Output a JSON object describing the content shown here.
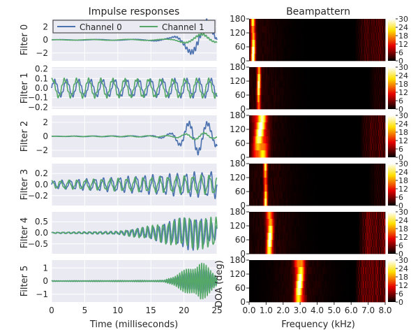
{
  "chart_data": [
    {
      "type": "line",
      "title": "Impulse responses",
      "xlabel": "Time (milliseconds)",
      "xlim": [
        0,
        25
      ],
      "xticks": [
        "0",
        "5",
        "10",
        "15",
        "20",
        "25"
      ],
      "legend": {
        "placement": "top",
        "entries": [
          "Channel 0",
          "Channel 1"
        ]
      },
      "series_colors": [
        "#4c72b0",
        "#55a868"
      ],
      "panels": [
        {
          "ylabel": "Filter 0",
          "ylim": [
            -3.2,
            3.2
          ],
          "yticks": [
            "2",
            "0",
            "−2"
          ],
          "series": [
            {
              "name": "Channel 0",
              "envelope": [
                [
                  0,
                  0.03
                ],
                [
                  14,
                  0.08
                ],
                [
                  18,
                  0.3
                ],
                [
                  20,
                  1.2
                ],
                [
                  22,
                  2.6
                ],
                [
                  23.5,
                  2.8
                ],
                [
                  25,
                  1.0
                ]
              ],
              "freq_khz": 0.18
            },
            {
              "name": "Channel 1",
              "envelope": [
                [
                  0,
                  0.03
                ],
                [
                  18,
                  0.1
                ],
                [
                  21,
                  0.6
                ],
                [
                  23,
                  0.9
                ],
                [
                  25,
                  0.4
                ]
              ],
              "freq_khz": 0.18
            }
          ]
        },
        {
          "ylabel": "Filter 1",
          "ylim": [
            -0.22,
            0.22
          ],
          "yticks": [
            "0.2",
            "0.1",
            "0.0",
            "−0.1",
            "−0.2"
          ],
          "series": [
            {
              "name": "Channel 0",
              "envelope": [
                [
                  0,
                  0.08
                ],
                [
                  25,
                  0.09
                ]
              ],
              "freq_khz": 0.55
            },
            {
              "name": "Channel 1",
              "envelope": [
                [
                  0,
                  0.09
                ],
                [
                  25,
                  0.09
                ]
              ],
              "freq_khz": 0.55
            }
          ]
        },
        {
          "ylabel": "Filter 2",
          "ylim": [
            -3.0,
            3.0
          ],
          "yticks": [
            "2",
            "0",
            "−2"
          ],
          "series": [
            {
              "name": "Channel 0",
              "envelope": [
                [
                  0,
                  0.02
                ],
                [
                  15,
                  0.08
                ],
                [
                  18,
                  0.4
                ],
                [
                  20,
                  1.6
                ],
                [
                  22,
                  2.3
                ],
                [
                  25,
                  1.4
                ]
              ],
              "freq_khz": 0.35
            },
            {
              "name": "Channel 1",
              "envelope": [
                [
                  0,
                  0.02
                ],
                [
                  18,
                  0.1
                ],
                [
                  21,
                  0.4
                ],
                [
                  23,
                  0.5
                ],
                [
                  25,
                  0.2
                ]
              ],
              "freq_khz": 0.35
            }
          ]
        },
        {
          "ylabel": "Filter 3",
          "ylim": [
            -0.38,
            0.38
          ],
          "yticks": [
            "0.2",
            "0.0",
            "−0.2"
          ],
          "series": [
            {
              "name": "Channel 0",
              "envelope": [
                [
                  0,
                  0.06
                ],
                [
                  10,
                  0.12
                ],
                [
                  25,
                  0.22
                ]
              ],
              "freq_khz": 0.8
            },
            {
              "name": "Channel 1",
              "envelope": [
                [
                  0,
                  0.06
                ],
                [
                  10,
                  0.1
                ],
                [
                  25,
                  0.16
                ]
              ],
              "freq_khz": 0.8
            }
          ]
        },
        {
          "ylabel": "Filter 4",
          "ylim": [
            -0.95,
            0.95
          ],
          "yticks": [
            "0.5",
            "0.0",
            "−0.5"
          ],
          "series": [
            {
              "name": "Channel 0",
              "envelope": [
                [
                  0,
                  0.02
                ],
                [
                  10,
                  0.06
                ],
                [
                  15,
                  0.25
                ],
                [
                  19,
                  0.55
                ],
                [
                  21,
                  0.7
                ],
                [
                  23,
                  0.55
                ],
                [
                  25,
                  0.3
                ]
              ],
              "freq_khz": 1.25
            },
            {
              "name": "Channel 1",
              "envelope": [
                [
                  0,
                  0.02
                ],
                [
                  10,
                  0.06
                ],
                [
                  15,
                  0.28
                ],
                [
                  19,
                  0.55
                ],
                [
                  22,
                  0.65
                ],
                [
                  25,
                  0.6
                ]
              ],
              "freq_khz": 1.25
            }
          ]
        },
        {
          "ylabel": "Filter 5",
          "ylim": [
            -1.6,
            1.6
          ],
          "yticks": [
            "1",
            "0",
            "−1"
          ],
          "series": [
            {
              "name": "Channel 0",
              "envelope": [
                [
                  0,
                  0.02
                ],
                [
                  17,
                  0.04
                ],
                [
                  20,
                  0.5
                ],
                [
                  22.5,
                  0.9
                ],
                [
                  25,
                  0.3
                ]
              ],
              "freq_khz": 3.0
            },
            {
              "name": "Channel 1",
              "envelope": [
                [
                  0,
                  0.02
                ],
                [
                  17,
                  0.05
                ],
                [
                  20,
                  0.7
                ],
                [
                  22.5,
                  1.35
                ],
                [
                  25,
                  0.4
                ]
              ],
              "freq_khz": 3.0
            }
          ]
        }
      ]
    },
    {
      "type": "heatmap",
      "title": "Beampattern",
      "xlabel": "Frequency (kHz)",
      "ylabel": "DOA (deg)",
      "xlim": [
        0,
        8
      ],
      "ylim": [
        0,
        180
      ],
      "xticks": [
        "0.0",
        "1.0",
        "2.0",
        "3.0",
        "4.0",
        "5.0",
        "6.0",
        "7.0",
        "8.0"
      ],
      "yticks": [
        "180",
        "120",
        "60",
        "0"
      ],
      "colorbar": {
        "ticks": [
          "30",
          "24",
          "18",
          "12",
          "6",
          "0"
        ],
        "range": [
          0,
          30
        ]
      },
      "panels": [
        {
          "center_khz": 0.22,
          "width_khz": 0.12,
          "band_peak": 30,
          "hf_start_khz": 6.2,
          "hf_level": 4
        },
        {
          "center_khz": 0.55,
          "width_khz": 0.1,
          "band_peak": 28,
          "hf_start_khz": 7.0,
          "hf_level": 2
        },
        {
          "center_khz": 0.65,
          "width_khz": 0.35,
          "band_peak": 30,
          "hf_start_khz": 6.5,
          "hf_level": 4
        },
        {
          "center_khz": 0.95,
          "width_khz": 0.1,
          "band_peak": 26,
          "hf_start_khz": 7.0,
          "hf_level": 2
        },
        {
          "center_khz": 1.2,
          "width_khz": 0.18,
          "band_peak": 30,
          "hf_start_khz": 6.4,
          "hf_level": 6
        },
        {
          "center_khz": 2.95,
          "width_khz": 0.25,
          "band_peak": 30,
          "hf_start_khz": 6.2,
          "hf_level": 6
        }
      ]
    }
  ]
}
